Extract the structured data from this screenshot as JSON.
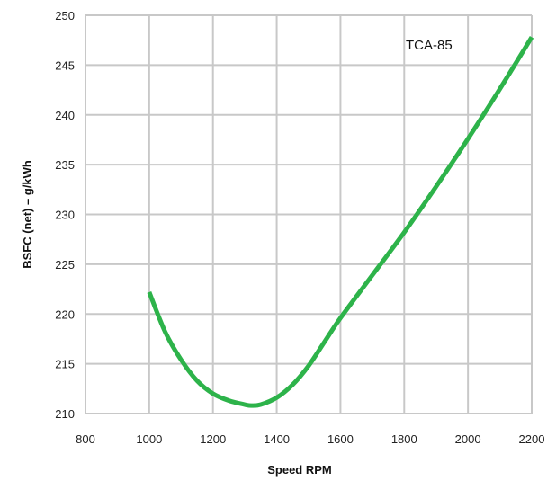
{
  "chart_data": {
    "type": "line",
    "xlabel": "Speed RPM",
    "ylabel": "BSFC (net) – g/kWh",
    "xlim": [
      800,
      2200
    ],
    "ylim": [
      210,
      250
    ],
    "xticks": [
      800,
      1000,
      1200,
      1400,
      1600,
      1800,
      2000,
      2200
    ],
    "yticks": [
      210,
      215,
      220,
      225,
      230,
      235,
      240,
      245,
      250
    ],
    "grid": true,
    "annotation": "TCA-85",
    "series": [
      {
        "name": "TCA-85",
        "color": "#2db34a",
        "x": [
          1000,
          1050,
          1100,
          1150,
          1200,
          1250,
          1300,
          1320,
          1350,
          1400,
          1450,
          1500,
          1550,
          1600,
          1700,
          1800,
          1900,
          2000,
          2100,
          2200
        ],
        "y": [
          222.2,
          218.2,
          215.4,
          213.3,
          212.0,
          211.3,
          210.9,
          210.8,
          210.9,
          211.6,
          212.9,
          214.8,
          217.2,
          219.6,
          223.9,
          228.2,
          232.8,
          237.6,
          242.6,
          247.8
        ]
      }
    ]
  }
}
